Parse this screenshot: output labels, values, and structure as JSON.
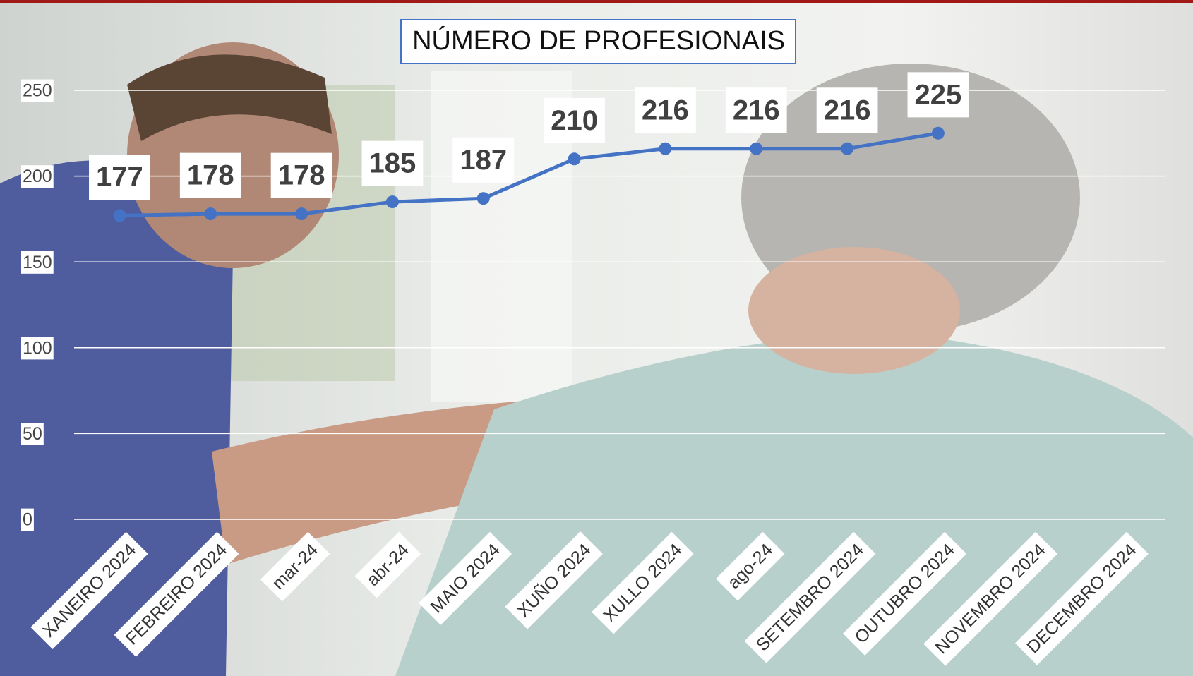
{
  "chart_data": {
    "type": "line",
    "title": "NÚMERO DE PROFESIONAIS",
    "categories": [
      "XANEIRO 2024",
      "FEBREIRO 2024",
      "mar-24",
      "abr-24",
      "MAIO 2024",
      "XUÑO 2024",
      "XULLO 2024",
      "ago-24",
      "SETEMBRO 2024",
      "OUTUBRO 2024",
      "NOVEMBRO 2024",
      "DECEMBRO 2024"
    ],
    "series": [
      {
        "color": "#4472c4",
        "values": [
          177,
          178,
          178,
          185,
          187,
          210,
          216,
          216,
          216,
          225,
          null,
          null
        ]
      }
    ],
    "ylim": [
      0,
      250
    ],
    "yticks": [
      0,
      50,
      100,
      150,
      200,
      250
    ],
    "grid": true
  }
}
